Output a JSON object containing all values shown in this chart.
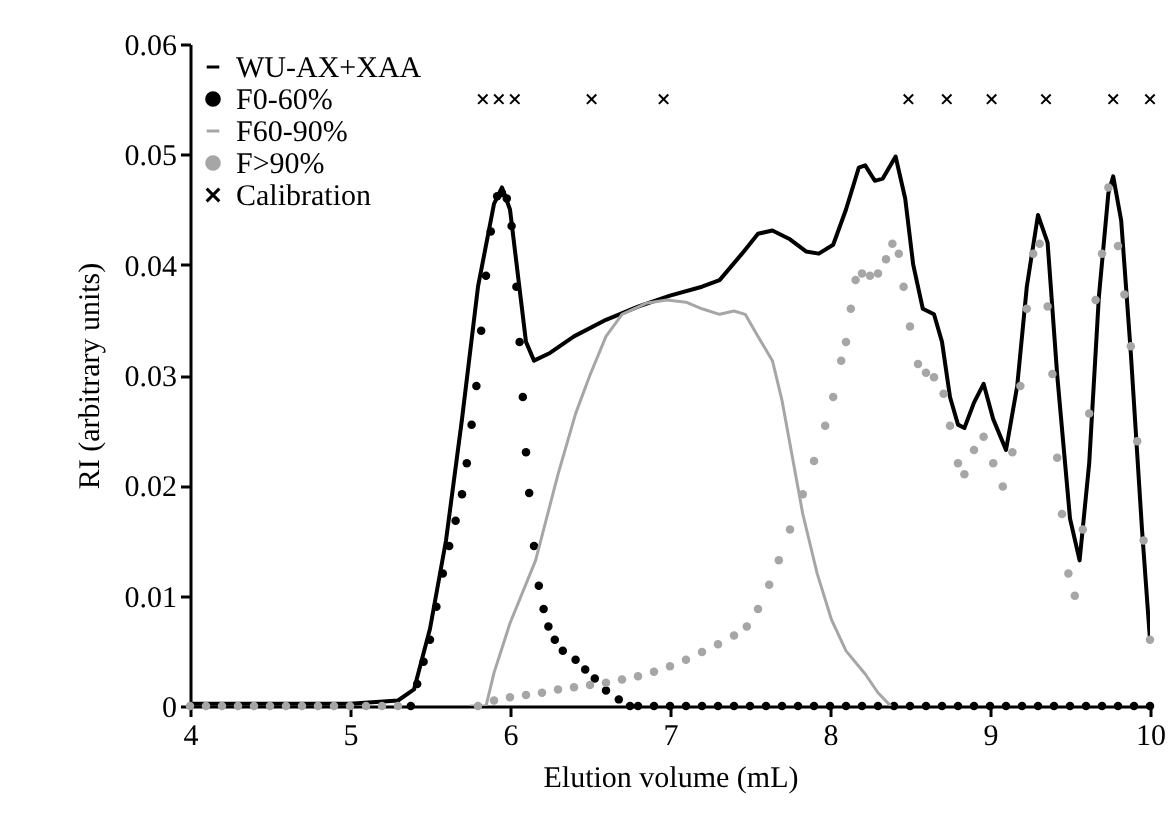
{
  "chart_data": {
    "type": "line",
    "xlabel": "Elution volume (mL)",
    "ylabel": "RI (arbitrary units)",
    "xlim": [
      4,
      10
    ],
    "xticks": [
      4,
      5,
      6,
      7,
      8,
      9,
      10
    ],
    "ylim": [
      0,
      0.06
    ],
    "yticks": [
      0,
      0.01,
      0.02,
      0.03,
      0.04,
      0.05,
      0.06
    ],
    "grid": false,
    "legend": "top left",
    "series": [
      {
        "name": "WU-AX+XAA",
        "line_style": "solid",
        "color": "#000000",
        "x": [
          4,
          5,
          5.3,
          5.4,
          5.5,
          5.6,
          5.7,
          5.8,
          5.9,
          5.95,
          6.0,
          6.05,
          6.1,
          6.15,
          6.25,
          6.4,
          6.6,
          6.8,
          7.0,
          7.2,
          7.31,
          7.45,
          7.55,
          7.64,
          7.75,
          7.85,
          7.93,
          8.02,
          8.1,
          8.18,
          8.22,
          8.28,
          8.33,
          8.41,
          8.47,
          8.52,
          8.58,
          8.65,
          8.7,
          8.75,
          8.8,
          8.84,
          8.9,
          8.96,
          9.02,
          9.1,
          9.17,
          9.23,
          9.3,
          9.36,
          9.42,
          9.5,
          9.56,
          9.62,
          9.68,
          9.74,
          9.77,
          9.82,
          9.88,
          9.95,
          10
        ],
        "values": [
          0.0002,
          0.0002,
          0.0005,
          0.0015,
          0.007,
          0.015,
          0.026,
          0.038,
          0.0455,
          0.047,
          0.045,
          0.039,
          0.033,
          0.0313,
          0.032,
          0.0335,
          0.035,
          0.0362,
          0.0372,
          0.038,
          0.0386,
          0.041,
          0.0428,
          0.0431,
          0.0423,
          0.0412,
          0.041,
          0.0418,
          0.045,
          0.0488,
          0.049,
          0.0476,
          0.0478,
          0.0498,
          0.046,
          0.04,
          0.036,
          0.0355,
          0.033,
          0.028,
          0.0255,
          0.0252,
          0.0275,
          0.0292,
          0.026,
          0.0232,
          0.029,
          0.038,
          0.0445,
          0.042,
          0.03,
          0.017,
          0.0132,
          0.022,
          0.037,
          0.0465,
          0.048,
          0.044,
          0.032,
          0.016,
          0.006
        ]
      },
      {
        "name": "F0-60%",
        "type": "scatter",
        "marker": "circle",
        "color": "#000000",
        "x": [
          5.38,
          5.42,
          5.46,
          5.5,
          5.54,
          5.58,
          5.62,
          5.66,
          5.7,
          5.73,
          5.76,
          5.79,
          5.82,
          5.85,
          5.88,
          5.92,
          5.95,
          5.98,
          6.01,
          6.04,
          6.06,
          6.08,
          6.1,
          6.12,
          6.15,
          6.18,
          6.21,
          6.24,
          6.28,
          6.33,
          6.41,
          6.47,
          6.53,
          6.6,
          6.68,
          6.75,
          6.8,
          6.9,
          7.0,
          7.1,
          7.2,
          7.3,
          7.4,
          7.5,
          7.6,
          7.7,
          7.8,
          7.9,
          8.0,
          8.1,
          8.2,
          8.3,
          8.4,
          8.5,
          8.6,
          8.7,
          8.8,
          8.9,
          9.0,
          9.1,
          9.2,
          9.3,
          9.4,
          9.5,
          9.6,
          9.7,
          9.8,
          9.9,
          10.0
        ],
        "values": [
          0,
          0.002,
          0.004,
          0.006,
          0.009,
          0.012,
          0.0145,
          0.0168,
          0.0192,
          0.022,
          0.0255,
          0.029,
          0.034,
          0.039,
          0.043,
          0.0462,
          0.0465,
          0.046,
          0.0435,
          0.038,
          0.033,
          0.028,
          0.023,
          0.0193,
          0.0145,
          0.0109,
          0.0088,
          0.0072,
          0.006,
          0.005,
          0.0042,
          0.0033,
          0.0025,
          0.0014,
          0.0006,
          0,
          0,
          0,
          0,
          0,
          0,
          0,
          0,
          0,
          0,
          0,
          0,
          0,
          0,
          0,
          0,
          0,
          0,
          0,
          0,
          0,
          0,
          0,
          0,
          0,
          0,
          0,
          0,
          0,
          0,
          0,
          0,
          0,
          0
        ]
      },
      {
        "name": "F60-90%",
        "line_style": "solid",
        "color": "#a6a6a6",
        "x": [
          5.75,
          5.85,
          5.9,
          6.0,
          6.16,
          6.3,
          6.41,
          6.5,
          6.6,
          6.7,
          6.85,
          6.98,
          7.1,
          7.2,
          7.31,
          7.4,
          7.47,
          7.55,
          7.64,
          7.7,
          7.83,
          7.92,
          8.01,
          8.1,
          8.22,
          8.3,
          8.38
        ],
        "values": [
          0,
          0,
          0.003,
          0.0075,
          0.0132,
          0.021,
          0.0265,
          0.03,
          0.0335,
          0.0355,
          0.0365,
          0.0368,
          0.0366,
          0.036,
          0.0355,
          0.0358,
          0.0355,
          0.0335,
          0.0313,
          0.0277,
          0.0174,
          0.012,
          0.0078,
          0.005,
          0.0029,
          0.0012,
          0
        ]
      },
      {
        "name": "F>90%",
        "type": "scatter",
        "marker": "circle",
        "color": "#a6a6a6",
        "x": [
          4.0,
          4.1,
          4.2,
          4.3,
          4.4,
          4.5,
          4.6,
          4.7,
          4.8,
          4.9,
          5.0,
          5.1,
          5.2,
          5.3,
          5.8,
          5.9,
          6.0,
          6.1,
          6.2,
          6.3,
          6.4,
          6.5,
          6.6,
          6.7,
          6.8,
          6.9,
          7.0,
          7.1,
          7.2,
          7.3,
          7.4,
          7.48,
          7.55,
          7.62,
          7.68,
          7.75,
          7.83,
          7.9,
          7.97,
          8.02,
          8.07,
          8.1,
          8.13,
          8.16,
          8.2,
          8.25,
          8.3,
          8.35,
          8.39,
          8.43,
          8.46,
          8.5,
          8.55,
          8.6,
          8.65,
          8.71,
          8.75,
          8.8,
          8.84,
          8.9,
          8.96,
          9.02,
          9.08,
          9.14,
          9.19,
          9.23,
          9.27,
          9.31,
          9.36,
          9.39,
          9.42,
          9.45,
          9.49,
          9.53,
          9.58,
          9.62,
          9.66,
          9.7,
          9.74,
          9.8,
          9.84,
          9.88,
          9.92,
          9.96,
          10
        ],
        "values": [
          0,
          0,
          0,
          0,
          0,
          0,
          0,
          0,
          0,
          0,
          0,
          0,
          0,
          0,
          0,
          0.0005,
          0.0008,
          0.001,
          0.0012,
          0.0015,
          0.0017,
          0.0019,
          0.0021,
          0.0024,
          0.0027,
          0.0031,
          0.0036,
          0.0042,
          0.0049,
          0.0056,
          0.0064,
          0.0072,
          0.0088,
          0.011,
          0.0132,
          0.016,
          0.0192,
          0.0222,
          0.0254,
          0.028,
          0.0313,
          0.033,
          0.036,
          0.0386,
          0.0392,
          0.039,
          0.0392,
          0.0405,
          0.0419,
          0.041,
          0.038,
          0.0344,
          0.031,
          0.0302,
          0.0298,
          0.0283,
          0.0254,
          0.022,
          0.021,
          0.0232,
          0.0244,
          0.022,
          0.0199,
          0.023,
          0.029,
          0.036,
          0.041,
          0.0419,
          0.0362,
          0.0301,
          0.0225,
          0.0174,
          0.012,
          0.01,
          0.016,
          0.0265,
          0.0368,
          0.041,
          0.047,
          0.0417,
          0.0373,
          0.0326,
          0.024,
          0.015,
          0.006
        ]
      },
      {
        "name": "Calibration",
        "type": "scatter",
        "marker": "cross",
        "color": "#000000",
        "x": [
          5.83,
          5.93,
          6.03,
          6.51,
          6.96,
          8.49,
          8.73,
          9.01,
          9.35,
          9.77,
          10.0
        ],
        "values": [
          0.055,
          0.055,
          0.055,
          0.055,
          0.055,
          0.055,
          0.055,
          0.055,
          0.055,
          0.055,
          0.055
        ]
      }
    ]
  }
}
